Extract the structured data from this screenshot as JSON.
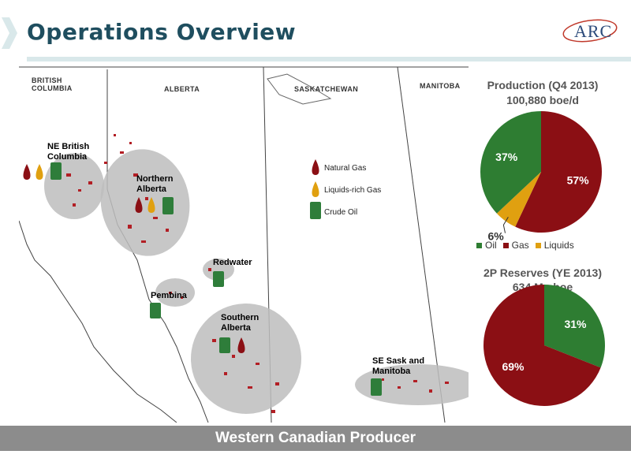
{
  "header": {
    "title": "Operations Overview",
    "logo_text": "ARC"
  },
  "map": {
    "provinces": [
      "BRITISH\nCOLUMBIA",
      "ALBERTA",
      "SASKATCHEWAN",
      "MANITOBA"
    ],
    "regions": [
      "NE British\nColumbia",
      "Northern\nAlberta",
      "Redwater",
      "Pembina",
      "Southern\nAlberta",
      "SE Sask and\nManitoba"
    ],
    "legend": [
      {
        "label": "Natural Gas",
        "icon": "gas-drop-icon",
        "color": "#8b0f14"
      },
      {
        "label": "Liquids-rich Gas",
        "icon": "liquids-drop-icon",
        "color": "#e0a010"
      },
      {
        "label": "Crude Oil",
        "icon": "oil-barrel-icon",
        "color": "#2e7d3a"
      }
    ]
  },
  "chart_data": [
    {
      "type": "pie",
      "title": "Production (Q4 2013)",
      "subtitle": "100,880 boe/d",
      "categories": [
        "Oil",
        "Gas",
        "Liquids"
      ],
      "values": [
        37,
        57,
        6
      ],
      "labels": [
        "37%",
        "57%",
        "6%"
      ],
      "colors": [
        "#2e7d32",
        "#8b0f14",
        "#e0a010"
      ],
      "legend": [
        "Oil",
        "Gas",
        "Liquids"
      ],
      "legend_position": "bottom"
    },
    {
      "type": "pie",
      "title": "2P Reserves (YE 2013)",
      "subtitle": "634 Mmboe",
      "categories": [
        "Oil",
        "Gas"
      ],
      "values": [
        31,
        69
      ],
      "labels": [
        "31%",
        "69%"
      ],
      "colors": [
        "#2e7d32",
        "#8b0f14"
      ]
    }
  ],
  "footer": {
    "text": "Western Canadian Producer"
  }
}
